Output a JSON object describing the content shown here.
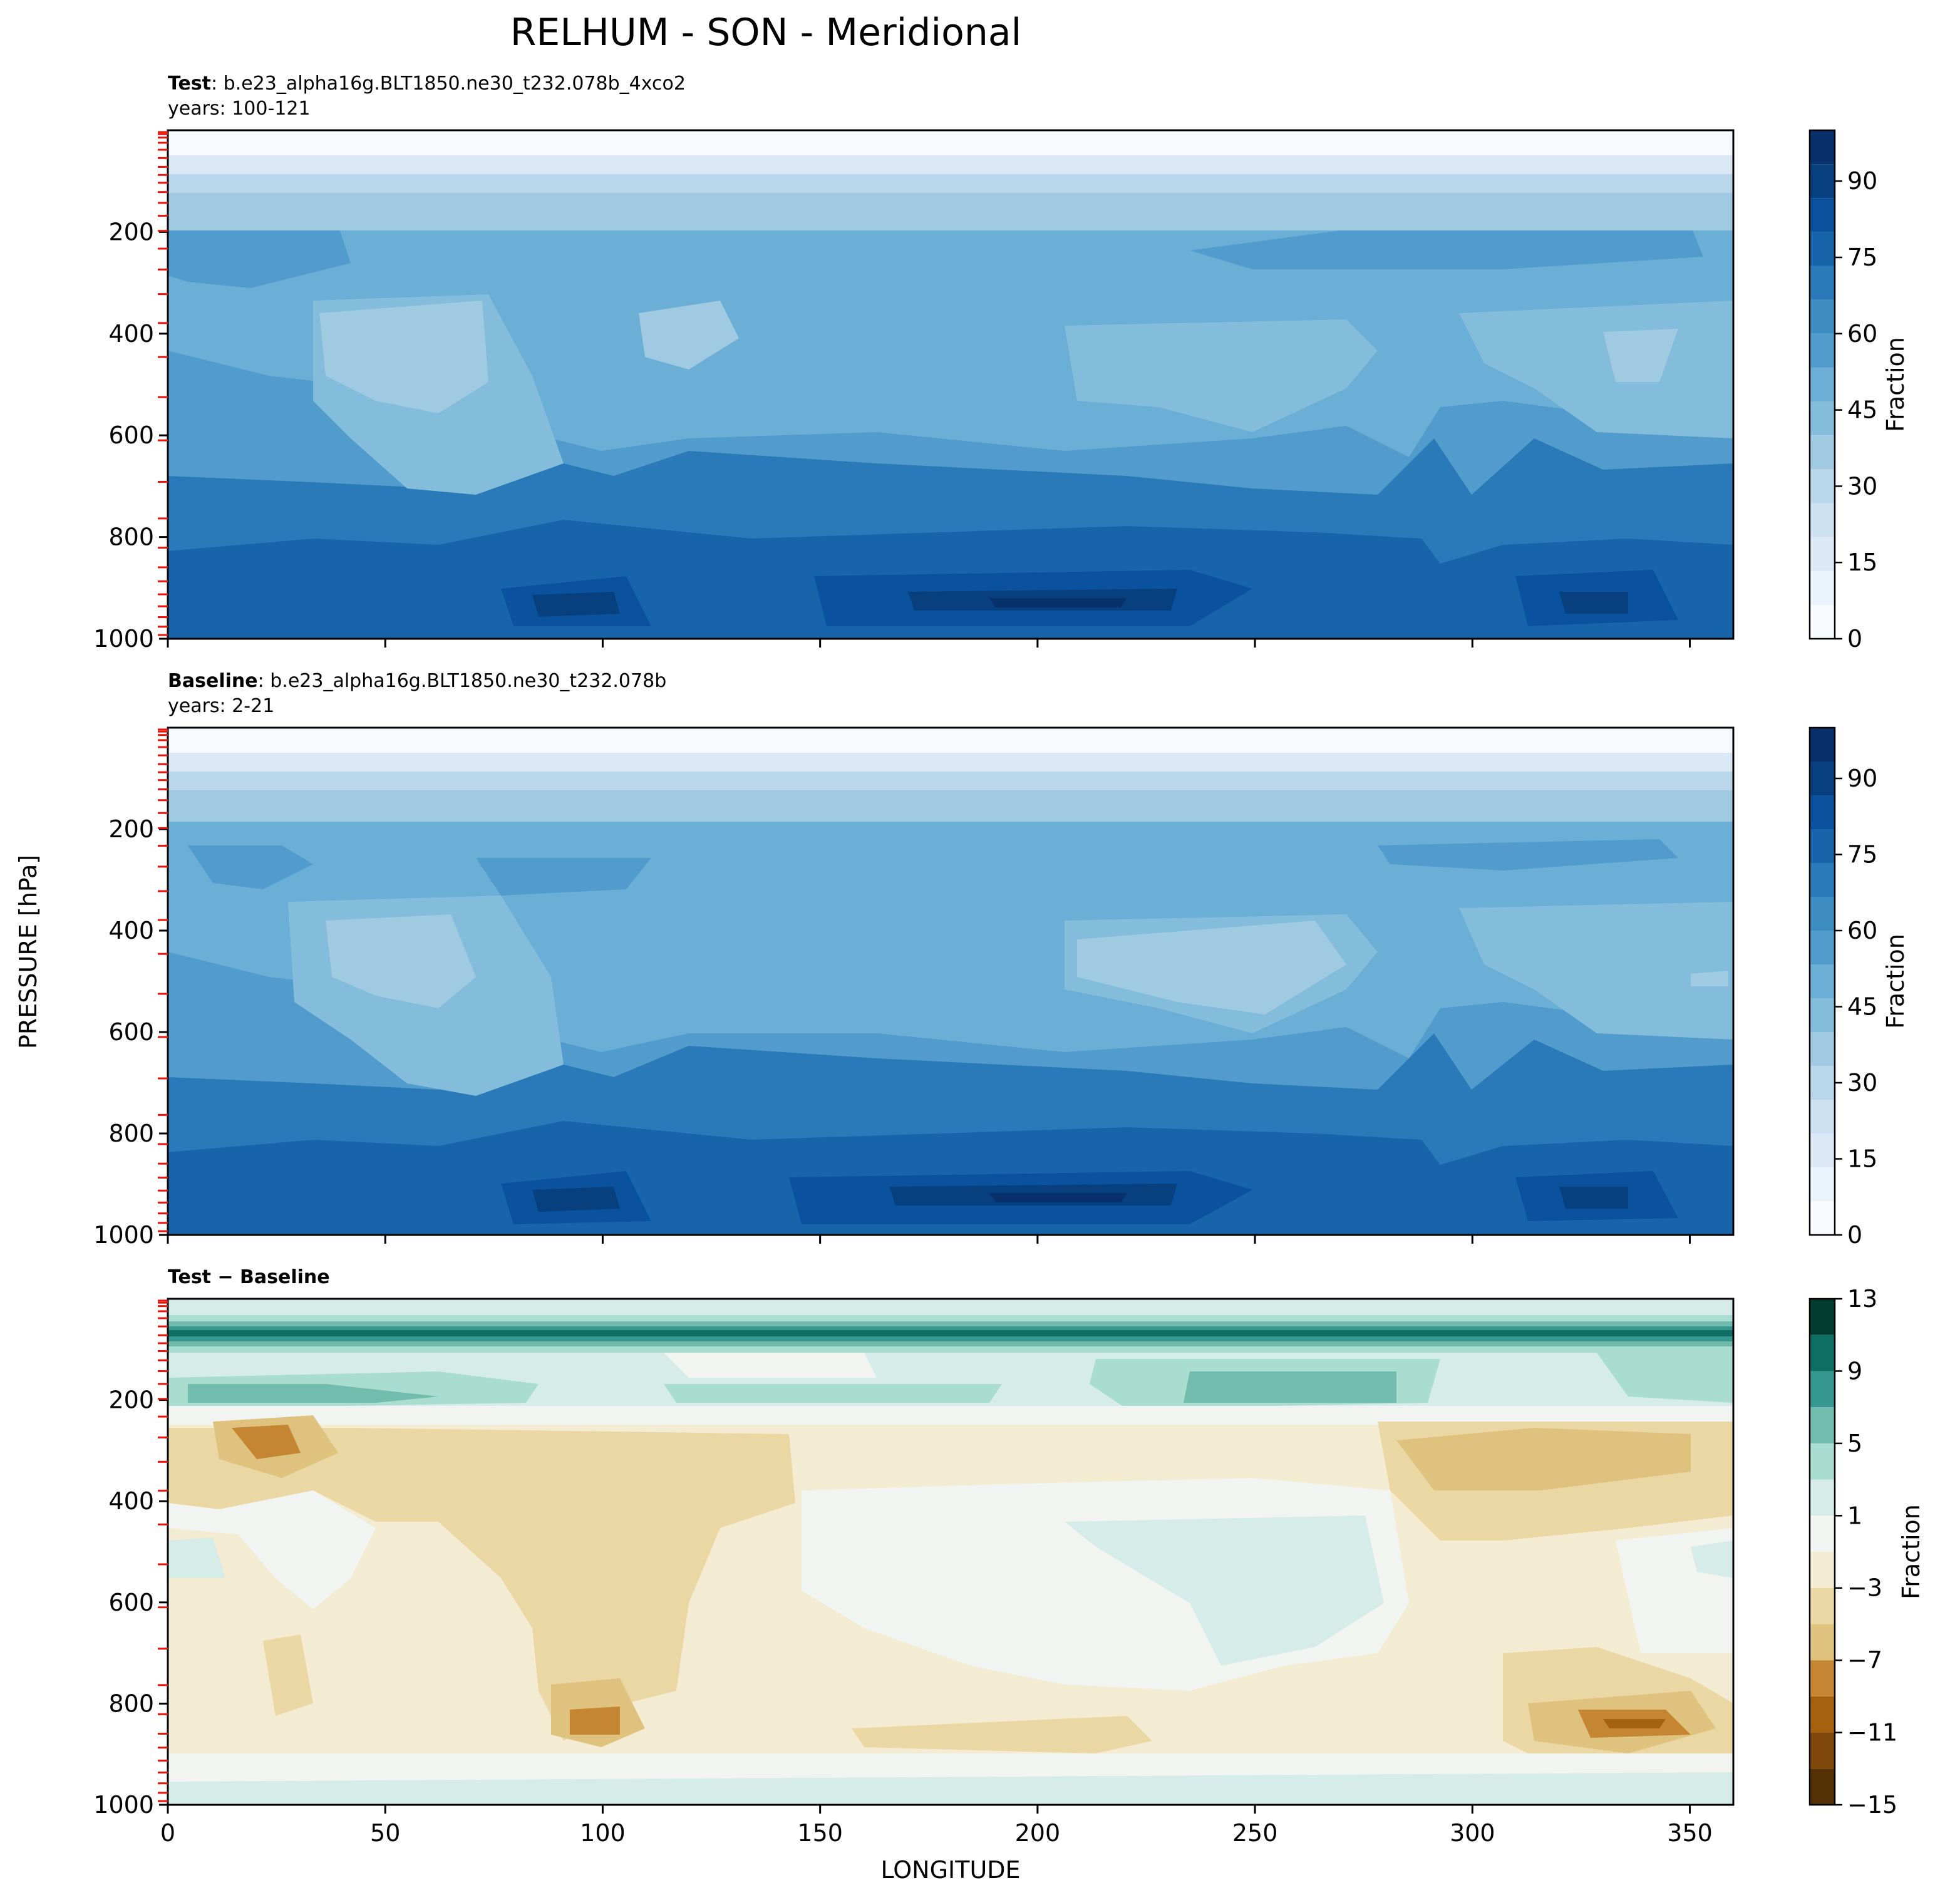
{
  "title": "RELHUM - SON - Meridional",
  "common_ylabel": "PRESSURE [hPa]",
  "colors": {
    "blues": [
      "#f7fbff",
      "#eaf2fb",
      "#dbe9f6",
      "#cde0f1",
      "#bad6eb",
      "#a0cae1",
      "#84bcdb",
      "#6baed6",
      "#519ccc",
      "#3d8dc3",
      "#2a7ab9",
      "#1764ab",
      "#0a529e",
      "#08407f",
      "#08306b"
    ],
    "diff_bounds": [
      -15,
      -13,
      -11,
      -9,
      -7,
      -5,
      -3,
      -1,
      1,
      3,
      5,
      7,
      9,
      11,
      13
    ],
    "diff_colors": [
      "#543005",
      "#7f4709",
      "#a6610f",
      "#c48633",
      "#dfc27d",
      "#ebd7a4",
      "#f4ebd3",
      "#f2f4f2",
      "#d6ece8",
      "#a8ddd0",
      "#72bcae",
      "#35978f",
      "#0f6e64",
      "#003c30"
    ]
  },
  "chart_data": [
    {
      "type": "contour",
      "panel": "test",
      "label_bold": "Test",
      "label_rest": ": b.e23_alpha16g.BLT1850.ne30_t232.078b_4xco2",
      "years": "years: 100-121",
      "xlim": [
        0,
        360
      ],
      "ylim": [
        1000,
        0
      ],
      "xticks": [
        0,
        50,
        100,
        150,
        200,
        250,
        300,
        350
      ],
      "show_xtick_labels": false,
      "yticks": [
        200,
        400,
        600,
        800,
        1000
      ],
      "model_levels_hPa": [
        3.6,
        7.6,
        14.4,
        24.6,
        38.3,
        54.6,
        72.0,
        87.8,
        103.3,
        121.5,
        142.9,
        168.2,
        197.9,
        232.8,
        273.9,
        322.2,
        379.1,
        445.9,
        524.7,
        609.8,
        691.4,
        763.4,
        820.9,
        859.5,
        887.0,
        912.6,
        936.2,
        957.5,
        976.3,
        992.6
      ],
      "colorbar": {
        "label": "Fraction",
        "min": 0,
        "max": 100,
        "ticks": [
          0,
          15,
          30,
          45,
          60,
          75,
          90
        ]
      }
    },
    {
      "type": "contour",
      "panel": "baseline",
      "label_bold": "Baseline",
      "label_rest": ": b.e23_alpha16g.BLT1850.ne30_t232.078b",
      "years": "years: 2-21",
      "xlim": [
        0,
        360
      ],
      "ylim": [
        1000,
        0
      ],
      "xticks": [
        0,
        50,
        100,
        150,
        200,
        250,
        300,
        350
      ],
      "show_xtick_labels": false,
      "yticks": [
        200,
        400,
        600,
        800,
        1000
      ],
      "model_levels_hPa": [
        3.6,
        7.6,
        14.4,
        24.6,
        38.3,
        54.6,
        72.0,
        87.8,
        103.3,
        121.5,
        142.9,
        168.2,
        197.9,
        232.8,
        273.9,
        322.2,
        379.1,
        445.9,
        524.7,
        609.8,
        691.4,
        763.4,
        820.9,
        859.5,
        887.0,
        912.6,
        936.2,
        957.5,
        976.3,
        992.6
      ],
      "colorbar": {
        "label": "Fraction",
        "min": 0,
        "max": 100,
        "ticks": [
          0,
          15,
          30,
          45,
          60,
          75,
          90
        ]
      }
    },
    {
      "type": "contour",
      "panel": "diff",
      "label_bold": "Test − Baseline",
      "xlim": [
        0,
        360
      ],
      "ylim": [
        1000,
        0
      ],
      "xticks": [
        0,
        50,
        100,
        150,
        200,
        250,
        300,
        350
      ],
      "show_xtick_labels": true,
      "xlabel": "LONGITUDE",
      "yticks": [
        200,
        400,
        600,
        800,
        1000
      ],
      "model_levels_hPa": [
        3.6,
        7.6,
        14.4,
        24.6,
        38.3,
        54.6,
        72.0,
        87.8,
        103.3,
        121.5,
        142.9,
        168.2,
        197.9,
        232.8,
        273.9,
        322.2,
        379.1,
        445.9,
        524.7,
        609.8,
        691.4,
        763.4,
        820.9,
        859.5,
        887.0,
        912.6,
        936.2,
        957.5,
        976.3,
        992.6
      ],
      "colorbar": {
        "label": "Fraction",
        "min": -15,
        "max": 13,
        "ticks": [
          -15,
          -11,
          -7,
          -3,
          1,
          5,
          9,
          13
        ]
      }
    }
  ]
}
